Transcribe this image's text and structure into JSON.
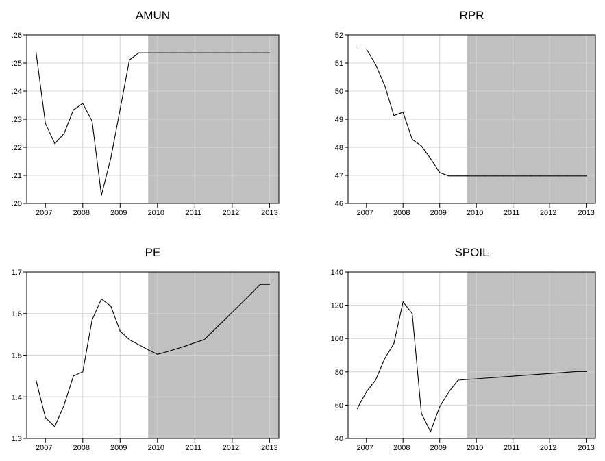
{
  "chart_data": [
    {
      "type": "line",
      "title": "AMUN",
      "x": [
        2006.75,
        2007.0,
        2007.25,
        2007.5,
        2007.75,
        2008.0,
        2008.25,
        2008.5,
        2008.75,
        2009.0,
        2009.25,
        2009.5,
        2009.75,
        2010.0,
        2010.25,
        2010.5,
        2010.75,
        2011.0,
        2011.25,
        2011.5,
        2011.75,
        2012.0,
        2012.25,
        2012.5,
        2012.75,
        2013.0
      ],
      "values": [
        0.2538,
        0.2285,
        0.2213,
        0.2249,
        0.2333,
        0.2356,
        0.2293,
        0.2029,
        0.2161,
        0.2335,
        0.2511,
        0.2536,
        0.2536,
        0.2536,
        0.2536,
        0.2536,
        0.2536,
        0.2536,
        0.2536,
        0.2536,
        0.2536,
        0.2536,
        0.2536,
        0.2536,
        0.2536,
        0.2536
      ],
      "ylim": [
        0.2,
        0.26
      ],
      "yticks": [
        0.2,
        0.21,
        0.22,
        0.23,
        0.24,
        0.25,
        0.26
      ],
      "ytick_labels": [
        ".20",
        ".21",
        ".22",
        ".23",
        ".24",
        ".25",
        ".26"
      ],
      "xlabels": [
        "2007",
        "2008",
        "2009",
        "2010",
        "2011",
        "2012",
        "2013"
      ],
      "shaded_from": 2009.75,
      "grid": true
    },
    {
      "type": "line",
      "title": "RPR",
      "x": [
        2006.75,
        2007.0,
        2007.25,
        2007.5,
        2007.75,
        2008.0,
        2008.25,
        2008.5,
        2008.75,
        2009.0,
        2009.25,
        2009.5,
        2009.75,
        2010.0,
        2010.25,
        2010.5,
        2010.75,
        2011.0,
        2011.25,
        2011.5,
        2011.75,
        2012.0,
        2012.25,
        2012.5,
        2012.75,
        2013.0
      ],
      "values": [
        51.5,
        51.5,
        50.95,
        50.2,
        49.13,
        49.25,
        48.28,
        48.05,
        47.6,
        47.1,
        46.98,
        46.98,
        46.98,
        46.98,
        46.98,
        46.98,
        46.98,
        46.98,
        46.98,
        46.98,
        46.98,
        46.98,
        46.98,
        46.98,
        46.98,
        46.98
      ],
      "ylim": [
        46,
        52
      ],
      "yticks": [
        46,
        47,
        48,
        49,
        50,
        51,
        52
      ],
      "ytick_labels": [
        "46",
        "47",
        "48",
        "49",
        "50",
        "51",
        "52"
      ],
      "xlabels": [
        "2007",
        "2008",
        "2009",
        "2010",
        "2011",
        "2012",
        "2013"
      ],
      "shaded_from": 2009.75,
      "grid": true
    },
    {
      "type": "line",
      "title": "PE",
      "x": [
        2006.75,
        2007.0,
        2007.25,
        2007.5,
        2007.75,
        2008.0,
        2008.25,
        2008.5,
        2008.75,
        2009.0,
        2009.25,
        2009.5,
        2009.75,
        2010.0,
        2010.25,
        2010.5,
        2010.75,
        2011.0,
        2011.25,
        2011.5,
        2011.75,
        2012.0,
        2012.25,
        2012.5,
        2012.75,
        2013.0
      ],
      "values": [
        1.44,
        1.35,
        1.328,
        1.38,
        1.45,
        1.46,
        1.585,
        1.635,
        1.618,
        1.558,
        1.537,
        1.525,
        1.513,
        1.502,
        1.508,
        1.515,
        1.522,
        1.53,
        1.537,
        1.559,
        1.581,
        1.603,
        1.625,
        1.647,
        1.67,
        1.67
      ],
      "ylim": [
        1.3,
        1.7
      ],
      "yticks": [
        1.3,
        1.4,
        1.5,
        1.6,
        1.7
      ],
      "ytick_labels": [
        "1.3",
        "1.4",
        "1.5",
        "1.6",
        "1.7"
      ],
      "xlabels": [
        "2007",
        "2008",
        "2009",
        "2010",
        "2011",
        "2012",
        "2013"
      ],
      "shaded_from": 2009.75,
      "grid": true
    },
    {
      "type": "line",
      "title": "SPOIL",
      "x": [
        2006.75,
        2007.0,
        2007.25,
        2007.5,
        2007.75,
        2008.0,
        2008.25,
        2008.5,
        2008.75,
        2009.0,
        2009.25,
        2009.5,
        2009.75,
        2010.0,
        2010.25,
        2010.5,
        2010.75,
        2011.0,
        2011.25,
        2011.5,
        2011.75,
        2012.0,
        2012.25,
        2012.5,
        2012.75,
        2013.0
      ],
      "values": [
        58,
        68,
        75,
        88,
        97,
        122,
        115,
        55,
        44,
        59,
        68,
        75,
        75.4,
        75.8,
        76.2,
        76.6,
        77.0,
        77.4,
        77.8,
        78.2,
        78.6,
        79.0,
        79.4,
        79.8,
        80.2,
        80.2
      ],
      "ylim": [
        40,
        140
      ],
      "yticks": [
        40,
        60,
        80,
        100,
        120,
        140
      ],
      "ytick_labels": [
        "40",
        "60",
        "80",
        "100",
        "120",
        "140"
      ],
      "xlabels": [
        "2007",
        "2008",
        "2009",
        "2010",
        "2011",
        "2012",
        "2013"
      ],
      "shaded_from": 2009.75,
      "grid": true
    }
  ]
}
